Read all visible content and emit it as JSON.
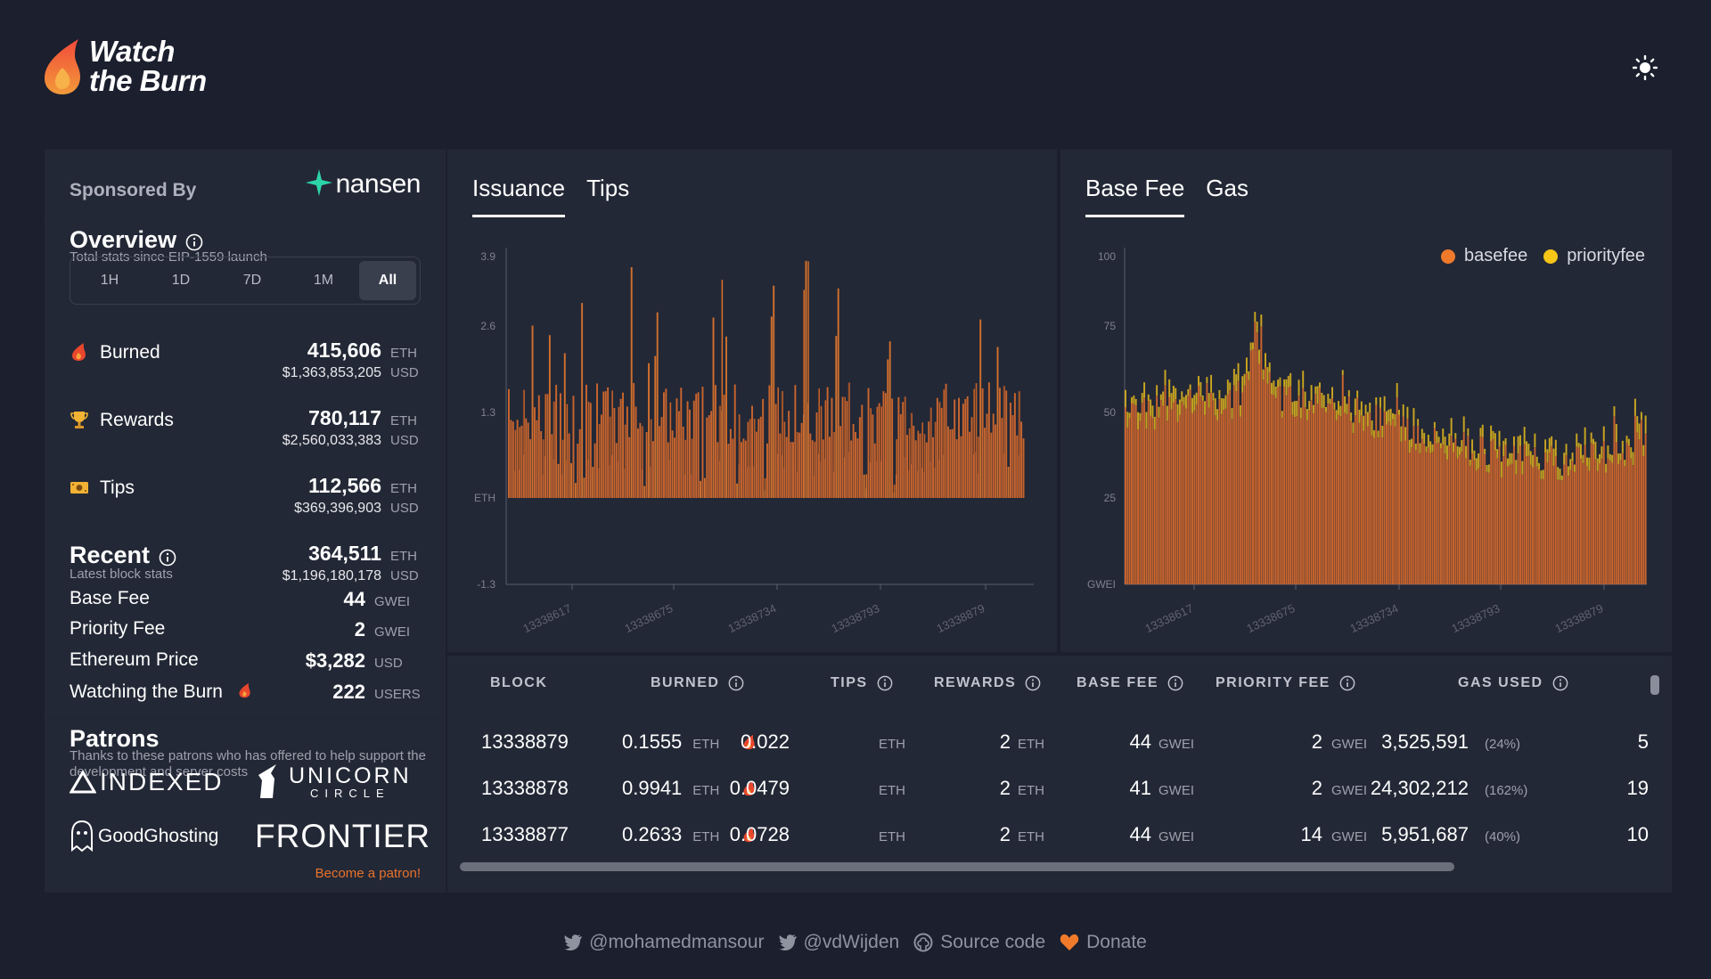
{
  "brand": {
    "line1": "Watch",
    "line2": "the Burn"
  },
  "sponsor": {
    "label": "Sponsored By",
    "name": "nansen"
  },
  "overview": {
    "title": "Overview",
    "subtitle": "Total stats since EIP-1559 launch",
    "ranges": [
      "1H",
      "1D",
      "7D",
      "1M",
      "All"
    ],
    "active_range": "All",
    "stats": [
      {
        "label": "Burned",
        "icon": "flame-icon",
        "value": "415,606",
        "unit": "ETH",
        "usd": "$1,363,853,205",
        "usd_unit": "USD"
      },
      {
        "label": "Rewards",
        "icon": "trophy-icon",
        "value": "780,117",
        "unit": "ETH",
        "usd": "$2,560,033,383",
        "usd_unit": "USD"
      },
      {
        "label": "Tips",
        "icon": "cash-icon",
        "value": "112,566",
        "unit": "ETH",
        "usd": "$369,396,903",
        "usd_unit": "USD"
      }
    ]
  },
  "recent": {
    "title": "Recent",
    "subtitle": "Latest block stats",
    "total_value": "364,511",
    "total_unit": "ETH",
    "total_usd": "$1,196,180,178",
    "total_usd_unit": "USD",
    "rows": [
      {
        "label": "Base Fee",
        "value": "44",
        "unit": "GWEI"
      },
      {
        "label": "Priority Fee",
        "value": "2",
        "unit": "GWEI"
      },
      {
        "label": "Ethereum Price",
        "value": "$3,282",
        "unit": "USD"
      },
      {
        "label": "Watching the Burn",
        "value": "222",
        "unit": "USERS"
      }
    ]
  },
  "patrons": {
    "title": "Patrons",
    "subtitle": "Thanks to these patrons who has offered to help support the development and server costs",
    "logos": [
      "INDEXED",
      "UNICORN",
      "CIRCLE",
      "GoodGhosting",
      "FRONTIER"
    ],
    "become_label": "Become a patron!"
  },
  "issuance_chart": {
    "tabs": [
      "Issuance",
      "Tips"
    ],
    "active_tab": "Issuance"
  },
  "basefee_chart": {
    "tabs": [
      "Base Fee",
      "Gas"
    ],
    "active_tab": "Base Fee",
    "legend": [
      {
        "name": "basefee",
        "color": "#f07a2a"
      },
      {
        "name": "priorityfee",
        "color": "#f5c518"
      }
    ]
  },
  "chart_data": [
    {
      "type": "bar",
      "ylabel": "ETH",
      "yticks": [
        "3.9",
        "2.6",
        "1.3",
        "ETH",
        "-1.3"
      ],
      "ylim": [
        -1.3,
        3.9
      ],
      "xticks": [
        "13338617",
        "13338675",
        "13338734",
        "13338793",
        "13338879"
      ],
      "color": "#c9652e",
      "series": [
        {
          "values_note": "per-block net issuance; mostly 1.5-2.4 with spikes up to ~3.8 and dips near 0"
        }
      ]
    },
    {
      "type": "bar",
      "ylabel": "GWEI",
      "yticks": [
        "100",
        "75",
        "50",
        "25",
        "GWEI"
      ],
      "ylim": [
        0,
        100
      ],
      "xticks": [
        "13338617",
        "13338675",
        "13338734",
        "13338793",
        "13338879"
      ],
      "series_names": [
        "basefee",
        "priorityfee"
      ],
      "colors": [
        "#c9652e",
        "#e8b020"
      ]
    }
  ],
  "table": {
    "columns": [
      "BLOCK",
      "BURNED",
      "TIPS",
      "REWARDS",
      "BASE FEE",
      "PRIORITY FEE",
      "GAS USED"
    ],
    "rows": [
      {
        "block": "13338879",
        "burned": "0.1555",
        "tips": "0.022",
        "rewards": "2",
        "basefee": "44",
        "priorityfee": "2",
        "gas": "3,525,591",
        "gas_pct": "(24%)",
        "tx": "5"
      },
      {
        "block": "13338878",
        "burned": "0.9941",
        "tips": "0.0479",
        "rewards": "2",
        "basefee": "41",
        "priorityfee": "2",
        "gas": "24,302,212",
        "gas_pct": "(162%)",
        "tx": "19"
      },
      {
        "block": "13338877",
        "burned": "0.2633",
        "tips": "0.0728",
        "rewards": "2",
        "basefee": "44",
        "priorityfee": "14",
        "gas": "5,951,687",
        "gas_pct": "(40%)",
        "tx": "10"
      }
    ],
    "units": {
      "eth": "ETH",
      "gwei": "GWEI"
    }
  },
  "footer": {
    "twitter1": "@mohamedmansour",
    "twitter2": "@vdWijden",
    "source": "Source code",
    "donate": "Donate"
  },
  "colors": {
    "accent": "#e8722a",
    "background": "#1b1f2e",
    "card": "#232836"
  }
}
